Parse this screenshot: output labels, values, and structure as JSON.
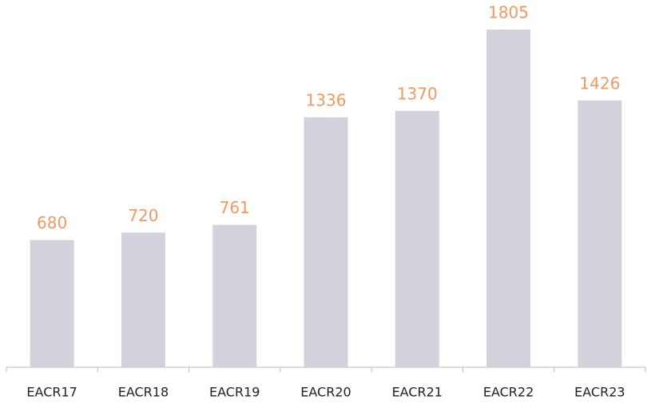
{
  "chart_data": {
    "type": "bar",
    "categories": [
      "EACR17",
      "EACR18",
      "EACR19",
      "EACR20",
      "EACR21",
      "EACR22",
      "EACR23"
    ],
    "values": [
      680,
      720,
      761,
      1336,
      1370,
      1805,
      1426
    ],
    "color": "#d4d1dd",
    "label_color": "#ef9a62"
  }
}
